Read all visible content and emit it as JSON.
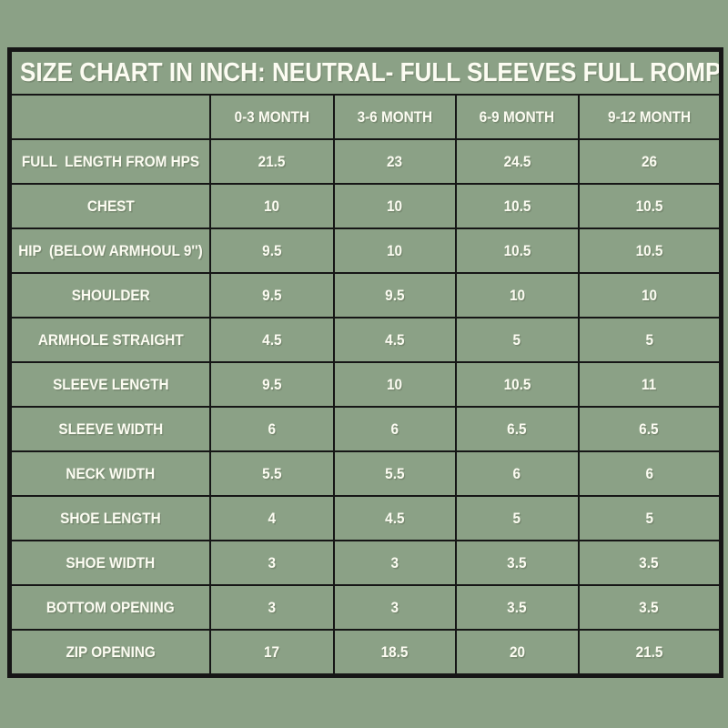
{
  "colors": {
    "background": "#8BA186",
    "grid_line": "#161616",
    "text": "#FCFCF2"
  },
  "chart_data": {
    "type": "table",
    "title": "SIZE CHART IN INCH: NEUTRAL- FULL SLEEVES FULL ROMPER",
    "unit": "inch",
    "columns": [
      "",
      "0-3 MONTH",
      "3-6 MONTH",
      "6-9 MONTH",
      "9-12 MONTH"
    ],
    "rows": [
      {
        "label": "FULL  LENGTH FROM HPS",
        "values": [
          21.5,
          23,
          24.5,
          26
        ]
      },
      {
        "label": "CHEST",
        "values": [
          10,
          10,
          10.5,
          10.5
        ]
      },
      {
        "label": "HIP  (BELOW ARMHOUL 9'')",
        "values": [
          9.5,
          10,
          10.5,
          10.5
        ]
      },
      {
        "label": "SHOULDER",
        "values": [
          9.5,
          9.5,
          10,
          10
        ]
      },
      {
        "label": "ARMHOLE STRAIGHT",
        "values": [
          4.5,
          4.5,
          5,
          5
        ]
      },
      {
        "label": "SLEEVE LENGTH",
        "values": [
          9.5,
          10,
          10.5,
          11
        ]
      },
      {
        "label": "SLEEVE WIDTH",
        "values": [
          6,
          6,
          6.5,
          6.5
        ]
      },
      {
        "label": "NECK WIDTH",
        "values": [
          5.5,
          5.5,
          6,
          6
        ]
      },
      {
        "label": "SHOE LENGTH",
        "values": [
          4,
          4.5,
          5,
          5
        ]
      },
      {
        "label": "SHOE WIDTH",
        "values": [
          3,
          3,
          3.5,
          3.5
        ]
      },
      {
        "label": "BOTTOM OPENING",
        "values": [
          3,
          3,
          3.5,
          3.5
        ]
      },
      {
        "label": "ZIP OPENING",
        "values": [
          17,
          18.5,
          20,
          21.5
        ]
      }
    ]
  }
}
